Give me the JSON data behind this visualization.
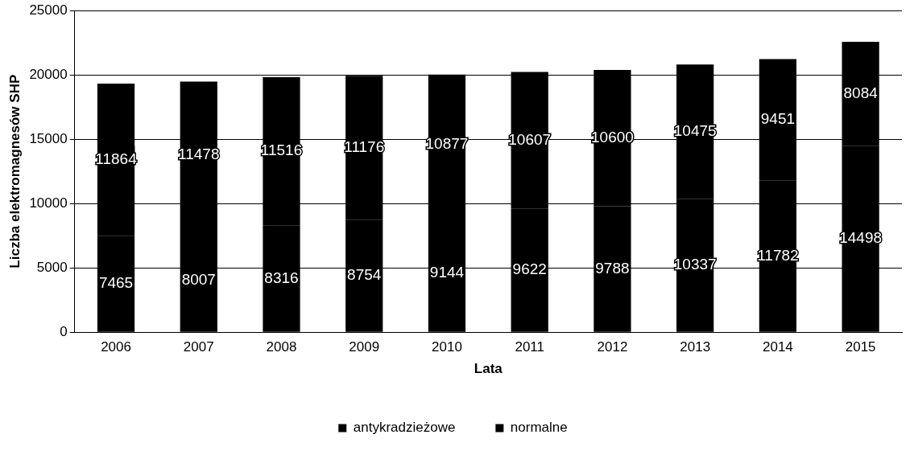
{
  "chart_data": {
    "type": "bar",
    "stacked": true,
    "xlabel": "Lata",
    "ylabel": "Liczba elektromagnesów SHP",
    "categories": [
      "2006",
      "2007",
      "2008",
      "2009",
      "2010",
      "2011",
      "2012",
      "2013",
      "2014",
      "2015"
    ],
    "series": [
      {
        "name": "antykradzieżowe",
        "color": "#000000",
        "values": [
          7465,
          8007,
          8316,
          8754,
          9144,
          9622,
          9788,
          10337,
          11782,
          14498
        ]
      },
      {
        "name": "normalne",
        "color": "#000000",
        "values": [
          11864,
          11478,
          11516,
          11176,
          10877,
          10607,
          10600,
          10475,
          9451,
          8084
        ]
      }
    ],
    "ylim": [
      0,
      25000
    ],
    "yticks": [
      0,
      5000,
      10000,
      15000,
      20000,
      25000
    ],
    "grid": "y",
    "legend": "bottom",
    "data_labels": true
  }
}
